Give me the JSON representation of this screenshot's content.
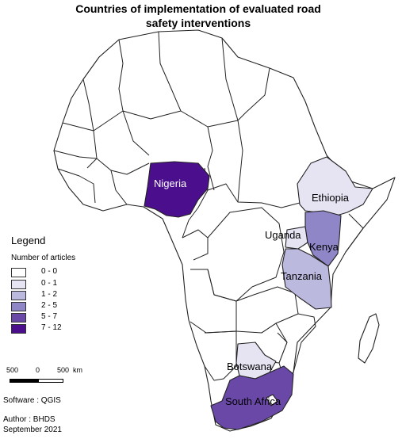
{
  "title_line1": "Countries of implementation of evaluated road",
  "title_line2": "safety interventions",
  "legend": {
    "title": "Legend",
    "subtitle": "Number of articles",
    "items": [
      {
        "label": "0 - 0",
        "color": "#ffffff"
      },
      {
        "label": "0 - 1",
        "color": "#e6e4f3"
      },
      {
        "label": "1 - 2",
        "color": "#bcb9de"
      },
      {
        "label": "2 - 5",
        "color": "#8e86c6"
      },
      {
        "label": "5 - 7",
        "color": "#6a48a8"
      },
      {
        "label": "7 - 12",
        "color": "#4b0f8e"
      }
    ]
  },
  "countries": {
    "nigeria": {
      "label": "Nigeria",
      "color": "#4b0f8e",
      "articles_range": "7 - 12"
    },
    "ethiopia": {
      "label": "Ethiopia",
      "color": "#e6e4f3",
      "articles_range": "0 - 1"
    },
    "uganda": {
      "label": "Uganda",
      "color": "#e6e4f3",
      "articles_range": "0 - 1"
    },
    "kenya": {
      "label": "Kenya",
      "color": "#8e86c6",
      "articles_range": "2 - 5"
    },
    "tanzania": {
      "label": "Tanzania",
      "color": "#bcb9de",
      "articles_range": "1 - 2"
    },
    "botswana": {
      "label": "Botswana",
      "color": "#e6e4f3",
      "articles_range": "0 - 1"
    },
    "south_africa": {
      "label": "South Africa",
      "color": "#6a48a8",
      "articles_range": "5 - 7"
    }
  },
  "base_color": "#ffffff",
  "scale": {
    "tick_left": "500",
    "tick_mid": "0",
    "tick_right": "500",
    "unit": "km"
  },
  "footer": {
    "software": "Software : QGIS",
    "author": "Author : BHDS",
    "date": "September 2021"
  }
}
